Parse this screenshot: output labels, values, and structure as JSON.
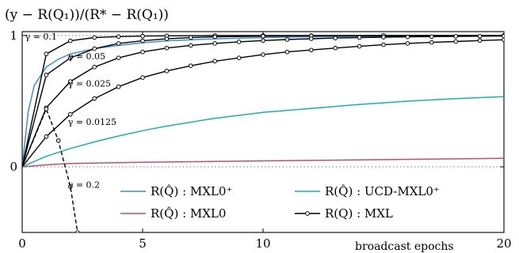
{
  "chart_data": {
    "type": "line",
    "ylabel": "(y − R(Q₁))/(R* − R(Q₁))",
    "xlabel": "broadcast epochs",
    "xlim": [
      0,
      20
    ],
    "ylim": [
      -0.5,
      1.03
    ],
    "x_ticks": [
      "0",
      "5",
      "10",
      "20"
    ],
    "y_ticks": [
      "0",
      "1"
    ],
    "reference_lines": [
      0,
      1
    ],
    "legend_placement": "bottom-center",
    "series": [
      {
        "name": "R(Q̂) : MXL0⁺",
        "color": "#3a8fdb",
        "style": "solid",
        "x": [
          0,
          0.25,
          0.5,
          1,
          1.5,
          2,
          3,
          4,
          5,
          6,
          8,
          10,
          12,
          15,
          20
        ],
        "y": [
          0,
          0.42,
          0.62,
          0.76,
          0.82,
          0.86,
          0.9,
          0.925,
          0.945,
          0.96,
          0.975,
          0.985,
          0.99,
          0.995,
          0.998
        ]
      },
      {
        "name": "R(Q̂) : UCD-MXL0⁺",
        "color": "#17b2a8",
        "style": "solid",
        "x": [
          0,
          1,
          2,
          3,
          4,
          5,
          6,
          8,
          10,
          12,
          14,
          16,
          18,
          20
        ],
        "y": [
          0,
          0.08,
          0.14,
          0.19,
          0.235,
          0.275,
          0.31,
          0.37,
          0.415,
          0.445,
          0.475,
          0.5,
          0.52,
          0.535
        ]
      },
      {
        "name": "R(Q̂) : MXL0",
        "color": "#c0506a",
        "style": "solid",
        "x": [
          0,
          1,
          2,
          5,
          10,
          15,
          20
        ],
        "y": [
          0,
          0.015,
          0.025,
          0.035,
          0.045,
          0.055,
          0.065
        ]
      },
      {
        "name": "R(Q) : MXL",
        "color": "#000000",
        "style": "solid-markers",
        "runs": [
          {
            "label": "γ = 0.1",
            "x": [
              0,
              1,
              2,
              3,
              4,
              5,
              6,
              8,
              10,
              12,
              15,
              20
            ],
            "y": [
              0,
              0.86,
              0.96,
              0.985,
              0.992,
              0.996,
              0.998,
              1.0,
              1.0,
              1.0,
              1.0,
              1.0
            ]
          },
          {
            "label": "γ = 0.05",
            "x": [
              0,
              1,
              2,
              3,
              4,
              5,
              6,
              7,
              8,
              10,
              12,
              15,
              20
            ],
            "y": [
              0,
              0.7,
              0.83,
              0.9,
              0.94,
              0.96,
              0.975,
              0.985,
              0.99,
              0.995,
              0.998,
              1.0,
              1.0
            ]
          },
          {
            "label": "γ = 0.025",
            "x": [
              0,
              1,
              2,
              3,
              4,
              5,
              6,
              7,
              8,
              9,
              10,
              11,
              12,
              13,
              14,
              15,
              16,
              17,
              18,
              19,
              20
            ],
            "y": [
              0,
              0.45,
              0.65,
              0.76,
              0.83,
              0.875,
              0.905,
              0.925,
              0.94,
              0.952,
              0.962,
              0.97,
              0.976,
              0.981,
              0.985,
              0.988,
              0.99,
              0.992,
              0.994,
              0.995,
              0.996
            ]
          },
          {
            "label": "γ = 0.0125",
            "x": [
              0,
              1,
              2,
              3,
              4,
              5,
              6,
              7,
              8,
              9,
              10,
              11,
              12,
              13,
              14,
              15,
              16,
              17,
              18,
              19,
              20
            ],
            "y": [
              0,
              0.23,
              0.4,
              0.52,
              0.61,
              0.68,
              0.73,
              0.77,
              0.805,
              0.83,
              0.855,
              0.875,
              0.89,
              0.905,
              0.918,
              0.93,
              0.94,
              0.948,
              0.955,
              0.962,
              0.968
            ]
          },
          {
            "label": "γ = 0.2",
            "style": "dashed",
            "x": [
              0,
              1,
              1.5,
              2,
              2.3
            ],
            "y": [
              0,
              0.44,
              0.2,
              -0.15,
              -0.5
            ]
          }
        ]
      }
    ]
  }
}
